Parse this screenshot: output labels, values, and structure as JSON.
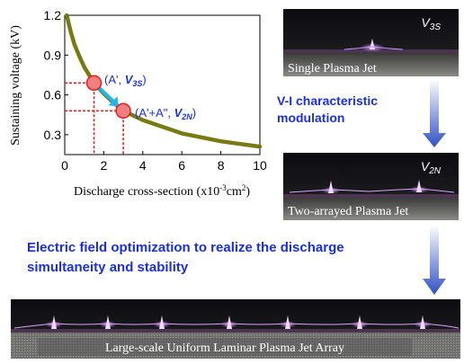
{
  "chart_data": {
    "type": "line",
    "xlabel": "Discharge cross-section (x10",
    "xlabel_exp": "-3",
    "xlabel_unit": "cm",
    "xlabel_unit_exp": "2",
    "xlabel_close": ")",
    "ylabel": "Sustaining voltage (kV)",
    "xlim": [
      0,
      10
    ],
    "ylim": [
      0.15,
      1.2
    ],
    "x_ticks": [
      0,
      2,
      4,
      6,
      8,
      10
    ],
    "y_ticks": [
      0.3,
      0.6,
      0.9,
      1.2
    ],
    "series": [
      {
        "color": "#7a7a12",
        "x": [
          0.1,
          0.3,
          0.5,
          0.75,
          1.0,
          1.5,
          2.0,
          2.5,
          3.0,
          4.0,
          5.0,
          6.0,
          7.0,
          8.0,
          9.0,
          10.0
        ],
        "y": [
          1.2,
          1.08,
          0.98,
          0.89,
          0.81,
          0.69,
          0.61,
          0.54,
          0.48,
          0.41,
          0.36,
          0.31,
          0.28,
          0.25,
          0.23,
          0.21
        ]
      }
    ],
    "points": [
      {
        "x": 1.5,
        "y": 0.69,
        "label_main": "(A', ",
        "label_v": "V",
        "label_sub": "3S",
        "label_end": ")"
      },
      {
        "x": 3.0,
        "y": 0.48,
        "label_main": "(A'+A\", ",
        "label_v": "V",
        "label_sub": "2N",
        "label_end": ")"
      }
    ],
    "colors": {
      "marker": "#f08080",
      "marker_edge": "#e02020",
      "arrow": "#22b5e8",
      "guide": "#e02020"
    }
  },
  "photos": {
    "single": {
      "label": "Single Plasma Jet",
      "tag_v": "V",
      "tag_sub": "3S"
    },
    "two": {
      "label": "Two-arrayed Plasma Jet",
      "tag_v": "V",
      "tag_sub": "2N"
    },
    "large": {
      "label": "Large-scale Uniform Laminar Plasma Jet Array"
    }
  },
  "text": {
    "vi_line1": "V-I characteristic",
    "vi_line2": "modulation",
    "ef_line1": "Electric field optimization to realize the discharge",
    "ef_line2": "simultaneity and stability"
  },
  "colors": {
    "blue_text": "#1a2ee6",
    "plasma": "#d9a0ff"
  }
}
